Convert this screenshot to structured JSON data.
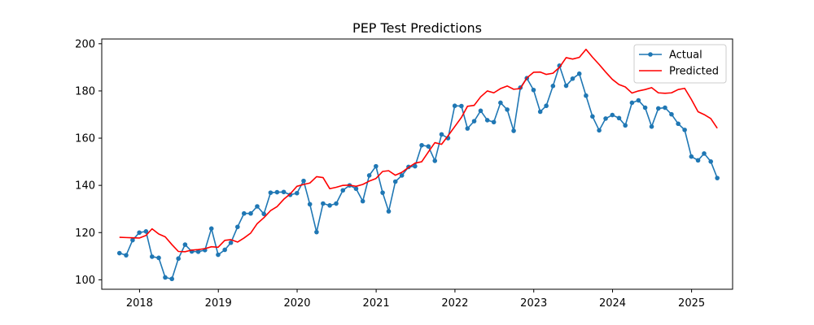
{
  "chart_data": {
    "type": "line",
    "title": "PEP Test Predictions",
    "xlabel": "",
    "ylabel": "",
    "x_ticks": [
      "2018",
      "2019",
      "2020",
      "2021",
      "2022",
      "2023",
      "2024",
      "2025"
    ],
    "y_ticks": [
      100,
      120,
      140,
      160,
      180,
      200
    ],
    "xlim": [
      "2017-07-10",
      "2025-07-10"
    ],
    "ylim": [
      96,
      202
    ],
    "legend_position": "top-right",
    "grid": false,
    "x": [
      "2017-09-30",
      "2017-10-31",
      "2017-11-30",
      "2017-12-31",
      "2018-01-31",
      "2018-02-28",
      "2018-03-31",
      "2018-04-30",
      "2018-05-31",
      "2018-06-30",
      "2018-07-31",
      "2018-08-31",
      "2018-09-30",
      "2018-10-31",
      "2018-11-30",
      "2018-12-31",
      "2019-01-31",
      "2019-02-28",
      "2019-03-31",
      "2019-04-30",
      "2019-05-31",
      "2019-06-30",
      "2019-07-31",
      "2019-08-31",
      "2019-09-30",
      "2019-10-31",
      "2019-11-30",
      "2019-12-31",
      "2020-01-31",
      "2020-02-29",
      "2020-03-31",
      "2020-04-30",
      "2020-05-31",
      "2020-06-30",
      "2020-07-31",
      "2020-08-31",
      "2020-09-30",
      "2020-10-31",
      "2020-11-30",
      "2020-12-31",
      "2021-01-31",
      "2021-02-28",
      "2021-03-31",
      "2021-04-30",
      "2021-05-31",
      "2021-06-30",
      "2021-07-31",
      "2021-08-31",
      "2021-09-30",
      "2021-10-31",
      "2021-11-30",
      "2021-12-31",
      "2022-01-31",
      "2022-02-28",
      "2022-03-31",
      "2022-04-30",
      "2022-05-31",
      "2022-06-30",
      "2022-07-31",
      "2022-08-31",
      "2022-09-30",
      "2022-10-31",
      "2022-11-30",
      "2022-12-31",
      "2023-01-31",
      "2023-02-28",
      "2023-03-31",
      "2023-04-30",
      "2023-05-31",
      "2023-06-30",
      "2023-07-31",
      "2023-08-31",
      "2023-09-30",
      "2023-10-31",
      "2023-11-30",
      "2023-12-31",
      "2024-01-31",
      "2024-02-29",
      "2024-03-31",
      "2024-04-30",
      "2024-05-31",
      "2024-06-30",
      "2024-07-31",
      "2024-08-31",
      "2024-09-30",
      "2024-10-31",
      "2024-11-30",
      "2024-12-31",
      "2025-01-31",
      "2025-02-28",
      "2025-03-31",
      "2025-04-30"
    ],
    "series": [
      {
        "name": "Actual",
        "color": "#1f77b4",
        "marker": "circle",
        "values": [
          111.3,
          110.4,
          116.8,
          120.0,
          120.5,
          109.8,
          109.3,
          101.0,
          100.4,
          109.0,
          114.9,
          112.0,
          111.9,
          112.6,
          121.7,
          110.6,
          112.7,
          115.7,
          122.4,
          128.1,
          128.1,
          131.1,
          127.9,
          136.9,
          137.1,
          137.2,
          136.0,
          136.7,
          141.9,
          132.0,
          120.2,
          132.3,
          131.5,
          132.3,
          137.9,
          140.0,
          138.6,
          133.3,
          144.2,
          148.1,
          136.9,
          129.0,
          141.6,
          144.2,
          147.8,
          148.1,
          157.0,
          156.5,
          150.4,
          161.6,
          160.0,
          173.7,
          173.6,
          164.1,
          167.2,
          171.6,
          167.6,
          166.8,
          175.0,
          172.1,
          163.1,
          181.4,
          185.4,
          180.4,
          171.2,
          173.7,
          182.1,
          190.7,
          182.2,
          185.2,
          187.3,
          178.0,
          169.2,
          163.3,
          168.3,
          169.8,
          168.5,
          165.4,
          175.0,
          176.0,
          172.9,
          164.9,
          172.6,
          172.9,
          170.1,
          166.1,
          163.5,
          152.2,
          150.6,
          153.5,
          150.1,
          143.1
        ]
      },
      {
        "name": "Predicted",
        "color": "#ff0000",
        "marker": "none",
        "values": [
          118.0,
          117.9,
          117.8,
          117.7,
          118.8,
          121.6,
          119.4,
          118.2,
          114.9,
          112.0,
          111.9,
          112.6,
          112.8,
          113.2,
          114.0,
          113.8,
          116.7,
          117.0,
          116.0,
          117.7,
          119.8,
          123.8,
          126.3,
          129.3,
          131.0,
          134.1,
          136.4,
          139.6,
          140.4,
          141.0,
          143.7,
          143.3,
          138.6,
          139.2,
          140.0,
          140.1,
          139.6,
          140.4,
          141.8,
          142.9,
          145.9,
          146.2,
          144.3,
          145.5,
          147.6,
          149.4,
          150.0,
          154.2,
          158.1,
          157.4,
          161.0,
          164.9,
          168.8,
          173.5,
          173.9,
          177.5,
          180.0,
          179.2,
          181.0,
          182.1,
          180.7,
          181.0,
          185.5,
          187.9,
          188.0,
          187.0,
          187.5,
          190.0,
          194.1,
          193.5,
          194.2,
          197.6,
          194.3,
          191.2,
          188.0,
          184.9,
          182.7,
          181.7,
          179.1,
          180.0,
          180.6,
          181.4,
          179.2,
          179.0,
          179.2,
          180.6,
          181.1,
          176.4,
          171.2,
          170.0,
          168.3,
          164.2
        ]
      }
    ]
  }
}
